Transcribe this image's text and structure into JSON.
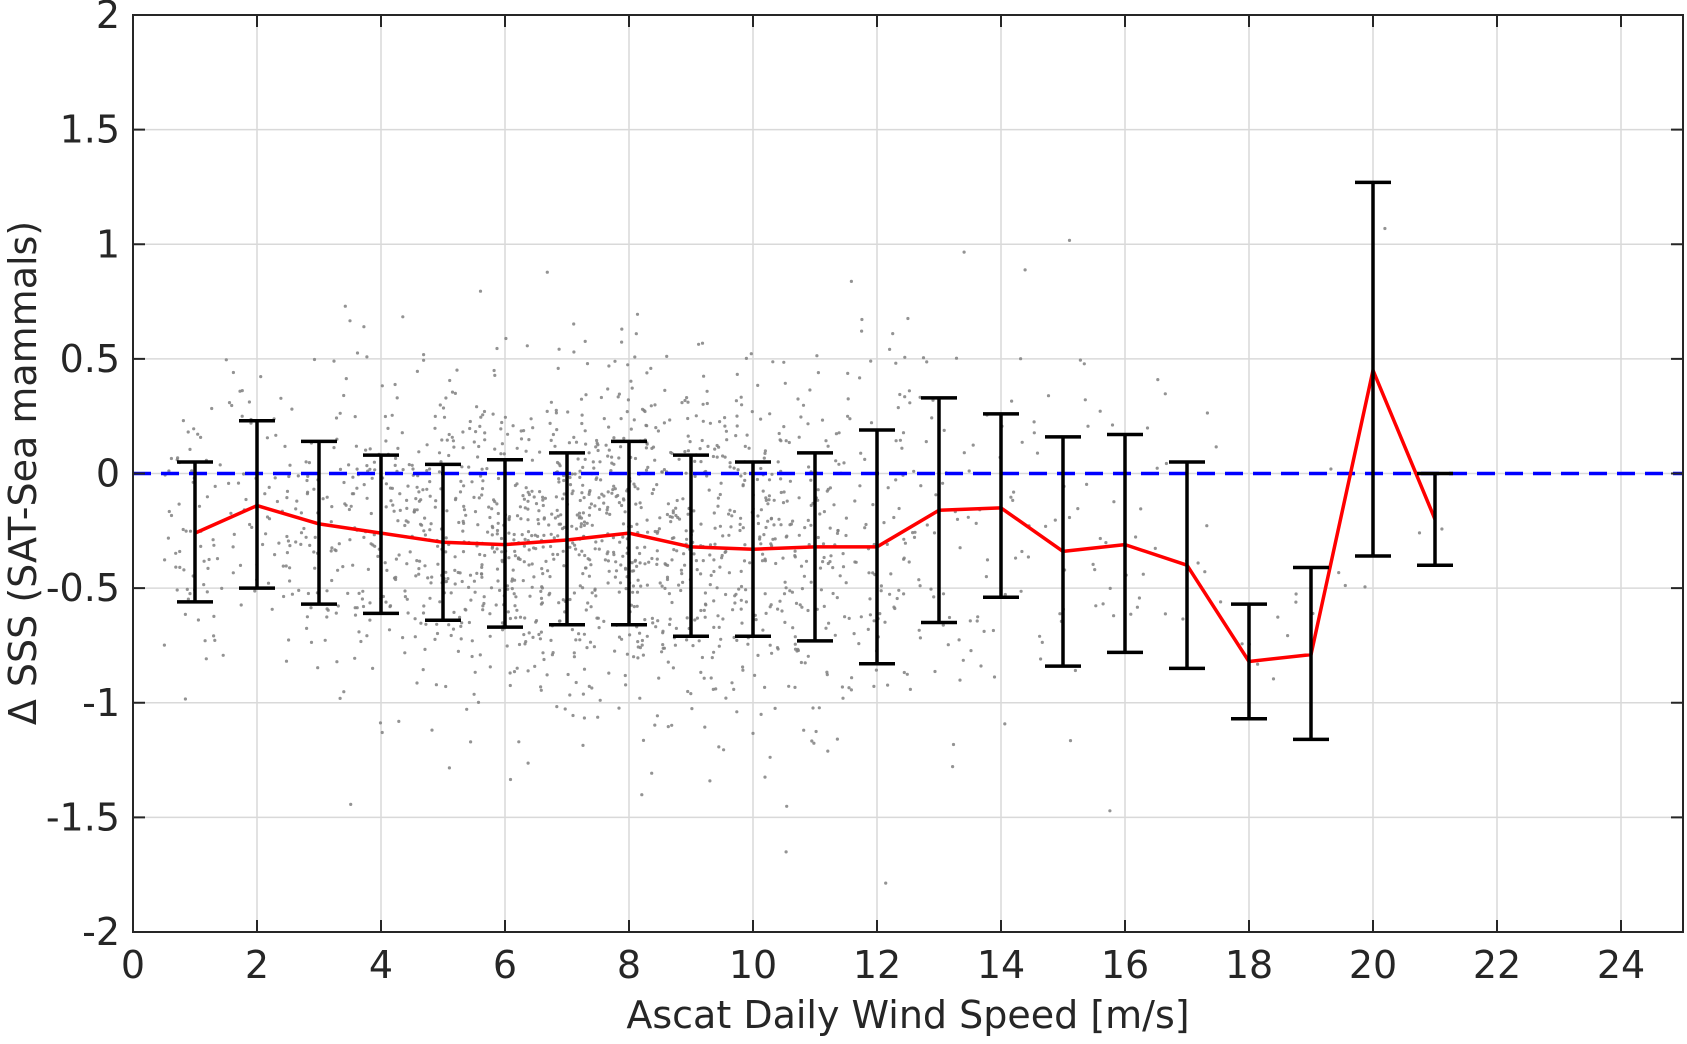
{
  "chart_data": {
    "type": "scatter",
    "title": "",
    "xlabel": "Ascat Daily Wind Speed [m/s]",
    "ylabel": "Δ SSS (SAT-Sea mammals)",
    "xlim": [
      0,
      25
    ],
    "ylim": [
      -2,
      2
    ],
    "xticks": [
      0,
      2,
      4,
      6,
      8,
      10,
      12,
      14,
      16,
      18,
      20,
      22,
      24
    ],
    "yticks": [
      -2,
      -1.5,
      -1,
      -0.5,
      0,
      0.5,
      1,
      1.5,
      2
    ],
    "ytick_labels": [
      "-2",
      "-1.5",
      "-1",
      "-0.5",
      "0",
      "0.5",
      "1",
      "1.5",
      "2"
    ],
    "grid": true,
    "legend": "none",
    "reference_line": {
      "y": 0,
      "style": "dashed",
      "color": "#0000ff"
    },
    "series": [
      {
        "type": "line",
        "color": "#ff0000",
        "x": [
          1,
          2,
          3,
          4,
          5,
          6,
          7,
          8,
          9,
          10,
          11,
          12,
          13,
          14,
          15,
          16,
          17,
          18,
          19,
          20,
          21
        ],
        "y": [
          -0.26,
          -0.14,
          -0.22,
          -0.26,
          -0.3,
          -0.31,
          -0.29,
          -0.26,
          -0.32,
          -0.33,
          -0.32,
          -0.32,
          -0.16,
          -0.15,
          -0.34,
          -0.31,
          -0.4,
          -0.82,
          -0.79,
          0.45,
          -0.2
        ]
      },
      {
        "type": "errorbar",
        "color": "#000000",
        "x": [
          1,
          2,
          3,
          4,
          5,
          6,
          7,
          8,
          9,
          10,
          11,
          12,
          13,
          14,
          15,
          16,
          17,
          18,
          19,
          20,
          21
        ],
        "upper": [
          0.05,
          0.23,
          0.14,
          0.08,
          0.04,
          0.06,
          0.09,
          0.14,
          0.08,
          0.05,
          0.09,
          0.19,
          0.33,
          0.26,
          0.16,
          0.17,
          0.05,
          -0.57,
          -0.41,
          1.27,
          0.0
        ],
        "lower": [
          -0.56,
          -0.5,
          -0.57,
          -0.61,
          -0.64,
          -0.67,
          -0.66,
          -0.66,
          -0.71,
          -0.71,
          -0.73,
          -0.83,
          -0.65,
          -0.54,
          -0.84,
          -0.78,
          -0.85,
          -1.07,
          -1.16,
          -0.36,
          -0.4
        ]
      },
      {
        "type": "scatter",
        "color": "#808080",
        "n_points": 1700,
        "description_of_density": [
          {
            "x": 0.6,
            "mean": -0.15,
            "sd": 0.25,
            "weight": 25
          },
          {
            "x": 1,
            "mean": -0.26,
            "sd": 0.3,
            "weight": 45
          },
          {
            "x": 2,
            "mean": -0.14,
            "sd": 0.3,
            "weight": 55
          },
          {
            "x": 3,
            "mean": -0.22,
            "sd": 0.33,
            "weight": 80
          },
          {
            "x": 4,
            "mean": -0.26,
            "sd": 0.34,
            "weight": 110
          },
          {
            "x": 5,
            "mean": -0.3,
            "sd": 0.34,
            "weight": 150
          },
          {
            "x": 6,
            "mean": -0.31,
            "sd": 0.36,
            "weight": 190
          },
          {
            "x": 7,
            "mean": -0.29,
            "sd": 0.37,
            "weight": 210
          },
          {
            "x": 8,
            "mean": -0.26,
            "sd": 0.4,
            "weight": 200
          },
          {
            "x": 9,
            "mean": -0.32,
            "sd": 0.39,
            "weight": 170
          },
          {
            "x": 10,
            "mean": -0.33,
            "sd": 0.38,
            "weight": 150
          },
          {
            "x": 11,
            "mean": -0.32,
            "sd": 0.4,
            "weight": 120
          },
          {
            "x": 12,
            "mean": -0.32,
            "sd": 0.5,
            "weight": 80
          },
          {
            "x": 13,
            "mean": -0.16,
            "sd": 0.48,
            "weight": 45
          },
          {
            "x": 14,
            "mean": -0.15,
            "sd": 0.4,
            "weight": 30
          },
          {
            "x": 15,
            "mean": -0.34,
            "sd": 0.5,
            "weight": 25
          },
          {
            "x": 16,
            "mean": -0.31,
            "sd": 0.47,
            "weight": 20
          },
          {
            "x": 17,
            "mean": -0.4,
            "sd": 0.45,
            "weight": 12
          },
          {
            "x": 18,
            "mean": -0.82,
            "sd": 0.25,
            "weight": 6
          },
          {
            "x": 19,
            "mean": -0.79,
            "sd": 0.37,
            "weight": 6
          },
          {
            "x": 20,
            "mean": 0.45,
            "sd": 0.8,
            "weight": 3
          },
          {
            "x": 21,
            "mean": -0.2,
            "sd": 0.2,
            "weight": 2
          }
        ]
      }
    ]
  }
}
